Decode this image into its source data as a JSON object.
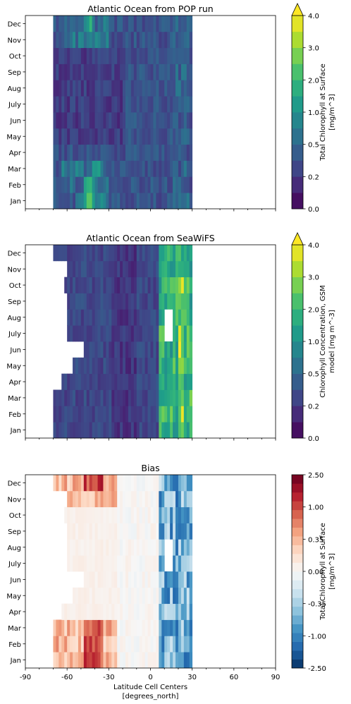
{
  "figure": {
    "xlabel": "Latitude Cell Centers",
    "xlabel_units": "[degrees_north]"
  },
  "colormaps": {
    "viridis": [
      "#440154",
      "#472777",
      "#3e4a89",
      "#31688e",
      "#26838e",
      "#1f9e89",
      "#35b779",
      "#6ece58",
      "#b5de2b",
      "#fde725"
    ],
    "rdbu_r": [
      "#053061",
      "#2166ac",
      "#4393c3",
      "#92c5de",
      "#d1e5f0",
      "#f7f7f7",
      "#fddbc7",
      "#f4a582",
      "#d6604d",
      "#b2182b",
      "#67001f"
    ]
  },
  "chart_data": [
    {
      "type": "heatmap",
      "title": "Atlantic Ocean from POP run",
      "xlabel": "",
      "ylabel": "",
      "xlim": [
        -90,
        90
      ],
      "x_ticks": [
        -90,
        -60,
        -30,
        0,
        30,
        60,
        90
      ],
      "y_categories": [
        "Jan",
        "Feb",
        "Mar",
        "Apr",
        "May",
        "Jun",
        "July",
        "Aug",
        "Sep",
        "Oct",
        "Nov",
        "Dec"
      ],
      "data_extent_lat": [
        -70,
        30
      ],
      "colorbar": {
        "label_line1": "Total Chlorophyll at Surface",
        "label_line2": "[mg/m^3]",
        "tick_labels": [
          "0.0",
          "0.2",
          "0.5",
          "1.0",
          "2.0",
          "3.0",
          "4.0"
        ],
        "extend": "max",
        "cmap": "viridis"
      },
      "field": "pop",
      "show_xticklabels": false
    },
    {
      "type": "heatmap",
      "title": "Atlantic Ocean from SeaWiFS",
      "xlabel": "",
      "ylabel": "",
      "xlim": [
        -90,
        90
      ],
      "x_ticks": [
        -90,
        -60,
        -30,
        0,
        30,
        60,
        90
      ],
      "y_categories": [
        "Jan",
        "Feb",
        "Mar",
        "Apr",
        "May",
        "Jun",
        "July",
        "Aug",
        "Sep",
        "Oct",
        "Nov",
        "Dec"
      ],
      "data_extent_lat": [
        -70,
        30
      ],
      "colorbar": {
        "label_line1": "Chlorophyll Concentration, GSM",
        "label_line2": "model [mg m^-3]",
        "tick_labels": [
          "0.0",
          "0.2",
          "0.5",
          "1.0",
          "2.0",
          "3.0",
          "4.0"
        ],
        "extend": "max",
        "cmap": "viridis"
      },
      "field": "seawifs",
      "show_xticklabels": false
    },
    {
      "type": "heatmap",
      "title": "Bias",
      "xlabel": "Latitude Cell Centers",
      "ylabel": "",
      "xlim": [
        -90,
        90
      ],
      "x_ticks": [
        -90,
        -60,
        -30,
        0,
        30,
        60,
        90
      ],
      "x_tick_labels": [
        "-90",
        "-60",
        "-30",
        "0",
        "30",
        "60",
        "90"
      ],
      "y_categories": [
        "Jan",
        "Feb",
        "Mar",
        "Apr",
        "May",
        "Jun",
        "July",
        "Aug",
        "Sep",
        "Oct",
        "Nov",
        "Dec"
      ],
      "data_extent_lat": [
        -70,
        30
      ],
      "colorbar": {
        "label_line1": "Total Chlorophyll at Surface",
        "label_line2": "[mg/m^3]",
        "tick_labels": [
          "-2.50",
          "-1.00",
          "-0.35",
          "0.00",
          "0.35",
          "1.00",
          "2.50"
        ],
        "extend": "neither",
        "cmap": "rdbu_r"
      },
      "field": "bias",
      "show_xticklabels": true
    }
  ]
}
